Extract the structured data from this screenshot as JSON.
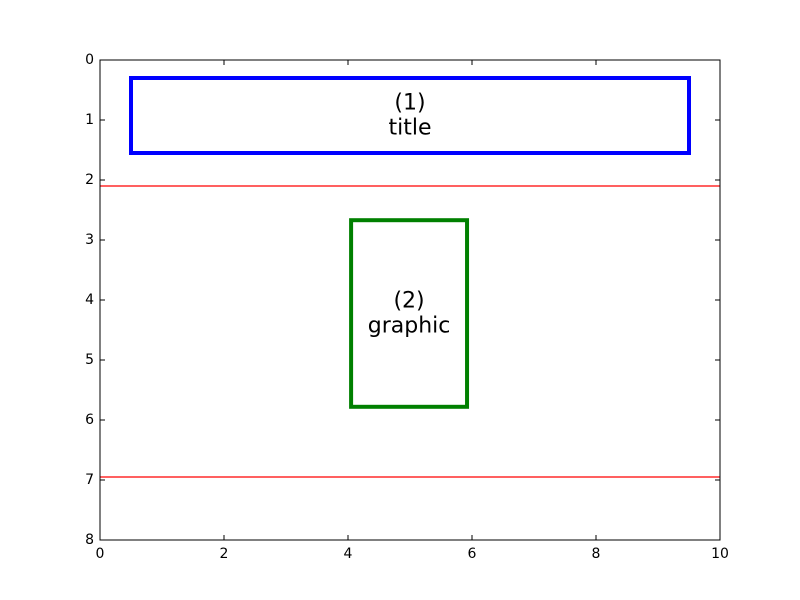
{
  "chart_data": {
    "type": "diagram",
    "xlim": [
      0,
      10
    ],
    "ylim": [
      0,
      8
    ],
    "y_inverted": true,
    "x_ticks": [
      0,
      2,
      4,
      6,
      8,
      10
    ],
    "y_ticks": [
      0,
      1,
      2,
      3,
      4,
      5,
      6,
      7,
      8
    ],
    "grid": false,
    "horizontal_lines": [
      {
        "y": 2.1,
        "color": "#ff0000"
      },
      {
        "y": 6.95,
        "color": "#ff0000"
      }
    ],
    "rectangles": [
      {
        "label_lines": [
          "(1)",
          "title"
        ],
        "x0": 0.5,
        "x1": 9.5,
        "y0": 0.3,
        "y1": 1.55,
        "color": "#0000ff"
      },
      {
        "label_lines": [
          "(2)",
          "graphic"
        ],
        "x0": 4.05,
        "x1": 5.92,
        "y0": 2.67,
        "y1": 5.78,
        "color": "#008000"
      }
    ]
  }
}
